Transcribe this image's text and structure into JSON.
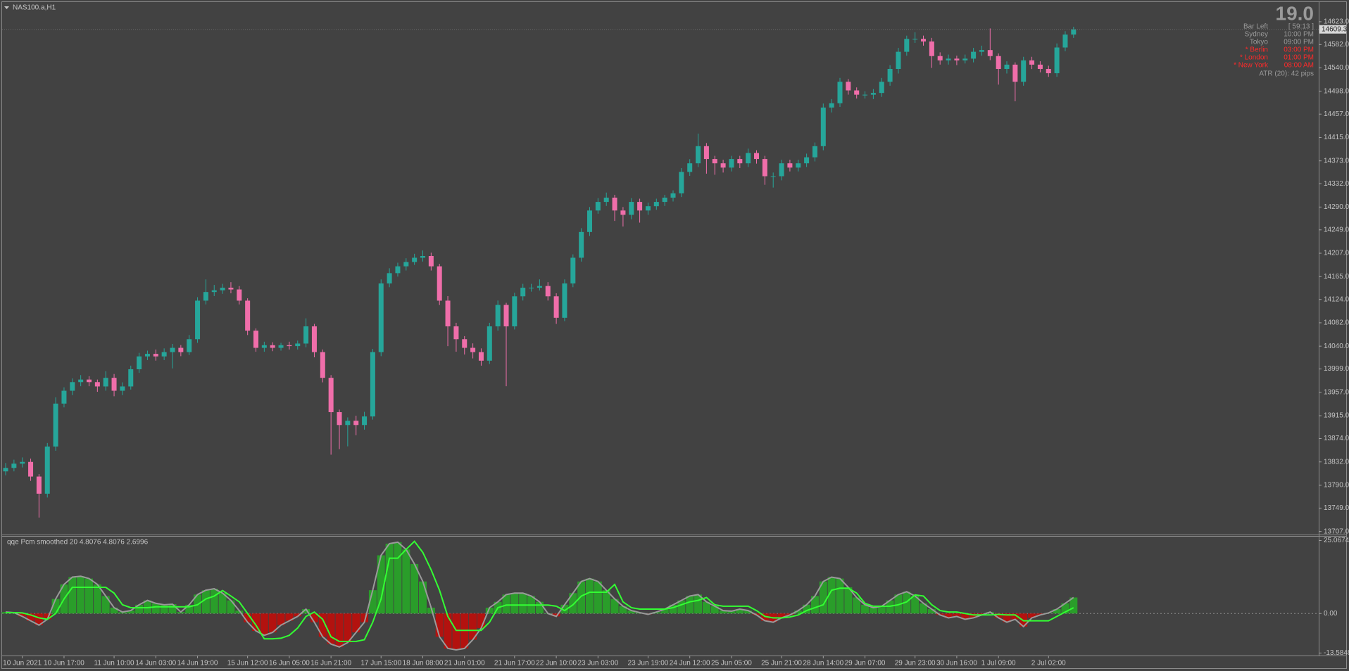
{
  "window": {
    "symbol": "NAS100.a,H1"
  },
  "info": {
    "spread": "19.0",
    "rows": [
      {
        "label": "Bar Left",
        "value": "[ 59:13 ]",
        "color": "#9a9a9a"
      },
      {
        "label": "Sydney",
        "value": "10:00 PM",
        "color": "#9a9a9a"
      },
      {
        "label": "Tokyo",
        "value": "09:00 PM",
        "color": "#9a9a9a"
      },
      {
        "label": "* Berlin",
        "value": "03:00 PM",
        "color": "#ff2a2a"
      },
      {
        "label": "* London",
        "value": "01:00 PM",
        "color": "#ff2a2a"
      },
      {
        "label": "* New York",
        "value": "08:00 AM",
        "color": "#ff2a2a"
      }
    ],
    "atr": "ATR (20): 42 pips"
  },
  "chart_data": [
    {
      "type": "candlestick",
      "up_color": "#26a69a",
      "down_color": "#f06eaa",
      "price_line": true,
      "ylim": [
        13704,
        14657
      ],
      "yticks": [
        {
          "value": 14623,
          "label": "14623.0"
        },
        {
          "value": 14582,
          "label": "14582.0"
        },
        {
          "value": 14540,
          "label": "14540.0"
        },
        {
          "value": 14498,
          "label": "14498.0"
        },
        {
          "value": 14457,
          "label": "14457.0"
        },
        {
          "value": 14415,
          "label": "14415.0"
        },
        {
          "value": 14373,
          "label": "14373.0"
        },
        {
          "value": 14332,
          "label": "14332.0"
        },
        {
          "value": 14290,
          "label": "14290.0"
        },
        {
          "value": 14249,
          "label": "14249.0"
        },
        {
          "value": 14207,
          "label": "14207.0"
        },
        {
          "value": 14165,
          "label": "14165.0"
        },
        {
          "value": 14124,
          "label": "14124.0"
        },
        {
          "value": 14082,
          "label": "14082.0"
        },
        {
          "value": 14040,
          "label": "14040.0"
        },
        {
          "value": 13999,
          "label": "13999.0"
        },
        {
          "value": 13957,
          "label": "13957.0"
        },
        {
          "value": 13915,
          "label": "13915.0"
        },
        {
          "value": 13874,
          "label": "13874.0"
        },
        {
          "value": 13832,
          "label": "13832.0"
        },
        {
          "value": 13790,
          "label": "13790.0"
        },
        {
          "value": 13749,
          "label": "13749.0"
        },
        {
          "value": 13707,
          "label": "13707.0"
        }
      ],
      "categories": [
        null,
        null,
        "10 Jun 2021",
        null,
        null,
        null,
        null,
        "10 Jun 17:00",
        null,
        null,
        null,
        null,
        null,
        "11 Jun 10:00",
        null,
        null,
        null,
        null,
        "14 Jun 03:00",
        null,
        null,
        null,
        null,
        "14 Jun 19:00",
        null,
        null,
        null,
        null,
        null,
        "15 Jun 12:00",
        null,
        null,
        null,
        null,
        "16 Jun 05:00",
        null,
        null,
        null,
        null,
        "16 Jun 21:00",
        null,
        null,
        null,
        null,
        null,
        "17 Jun 15:00",
        null,
        null,
        null,
        null,
        "18 Jun 08:00",
        null,
        null,
        null,
        null,
        "21 Jun 01:00",
        null,
        null,
        null,
        null,
        null,
        "21 Jun 17:00",
        null,
        null,
        null,
        null,
        "22 Jun 10:00",
        null,
        null,
        null,
        null,
        "23 Jun 03:00",
        null,
        null,
        null,
        null,
        null,
        "23 Jun 19:00",
        null,
        null,
        null,
        null,
        "24 Jun 12:00",
        null,
        null,
        null,
        null,
        "25 Jun 05:00",
        null,
        null,
        null,
        null,
        null,
        "25 Jun 21:00",
        null,
        null,
        null,
        null,
        "28 Jun 14:00",
        null,
        null,
        null,
        null,
        "29 Jun 07:00",
        null,
        null,
        null,
        null,
        null,
        "29 Jun 23:00",
        null,
        null,
        null,
        null,
        "30 Jun 16:00",
        null,
        null,
        null,
        null,
        "1 Jul 09:00",
        null,
        null,
        null,
        null,
        null,
        "2 Jul 02:00",
        null,
        null,
        null
      ],
      "open": [
        13815.0,
        13821.2,
        13828.9,
        13832.0,
        13805.7,
        13774.9,
        13859.7,
        13936.8,
        13959.9,
        13975.4,
        13980.0,
        13975.4,
        13967.6,
        13983.1,
        13959.9,
        13967.6,
        13998.5,
        14021.6,
        14026.2,
        14021.6,
        14029.3,
        14037.0,
        14029.3,
        14052.5,
        14121.8,
        14137.3,
        14140.4,
        14145.0,
        14141.9,
        14121.8,
        14067.9,
        14037.0,
        14041.7,
        14037.0,
        14041.7,
        14040.1,
        14044.7,
        14075.6,
        14029.3,
        13983.1,
        13921.4,
        13898.3,
        13906.0,
        13898.3,
        13913.7,
        14029.3,
        14152.7,
        14171.2,
        14183.5,
        14191.2,
        14198.9,
        14202.0,
        14183.5,
        14121.8,
        14075.6,
        14052.5,
        14037.0,
        14029.3,
        14013.9,
        14075.6,
        14114.1,
        14075.6,
        14129.6,
        14145.0,
        14145.0,
        14148.1,
        14129.6,
        14091.0,
        14152.7,
        14198.9,
        14245.2,
        14283.8,
        14299.2,
        14306.9,
        14283.8,
        14276.0,
        14299.2,
        14283.8,
        14291.5,
        14299.2,
        14306.9,
        14314.6,
        14353.1,
        14368.6,
        14399.4,
        14376.3,
        14368.6,
        14360.9,
        14376.3,
        14368.6,
        14387.1,
        14376.3,
        14345.4,
        14345.4,
        14368.6,
        14360.9,
        14368.6,
        14379.4,
        14399.4,
        14468.8,
        14476.5,
        14515.1,
        14499.6,
        14491.9,
        14491.9,
        14495.0,
        14515.1,
        14538.2,
        14569.0,
        14592.2,
        14592.2,
        14587.5,
        14561.3,
        14553.6,
        14556.7,
        14553.6,
        14556.7,
        14569.0,
        14572.1,
        14561.3,
        14538.2,
        14545.9,
        14515.1,
        14553.6,
        14545.9,
        14538.2,
        14530.5,
        14576.7,
        14599.9
      ],
      "high": [
        13830,
        13836,
        13840,
        13838,
        13810,
        13866,
        13948,
        13966,
        13982,
        13988,
        13986,
        13980,
        13995,
        13990,
        13975,
        14005,
        14028,
        14032,
        14034,
        14036,
        14044,
        14042,
        14060,
        14128,
        14160,
        14150,
        14152,
        14155,
        14148,
        14126,
        14072,
        14048,
        14047,
        14046,
        14048,
        14050,
        14090,
        14080,
        14034,
        13988,
        13926,
        13912,
        13915,
        13922,
        14035,
        14160,
        14180,
        14190,
        14198,
        14206,
        14212,
        14208,
        14188,
        14130,
        14082,
        14058,
        14045,
        14036,
        14082,
        14122,
        14118,
        14136,
        14152,
        14152,
        14160,
        14155,
        14135,
        14160,
        14205,
        14252,
        14290,
        14306,
        14316,
        14312,
        14290,
        14306,
        14305,
        14298,
        14305,
        14312,
        14320,
        14360,
        14376,
        14422,
        14405,
        14382,
        14375,
        14382,
        14382,
        14395,
        14392,
        14382,
        14352,
        14375,
        14375,
        14375,
        14386,
        14406,
        14476,
        14484,
        14522,
        14520,
        14505,
        14498,
        14502,
        14522,
        14545,
        14576,
        14598,
        14604,
        14598,
        14594,
        14568,
        14564,
        14562,
        14564,
        14576,
        14580,
        14611,
        14566,
        14552,
        14550,
        14560,
        14560,
        14552,
        14544,
        14584,
        14606,
        14614
      ],
      "low": [
        13808,
        13815,
        13822,
        13798,
        13732,
        13768,
        13852,
        13930,
        13952,
        13968,
        13968,
        13958,
        13960,
        13950,
        13952,
        13962,
        13992,
        14015,
        14014,
        14015,
        14000,
        14022,
        14024,
        14046,
        14115,
        14130,
        14134,
        14135,
        14115,
        14060,
        14030,
        14030,
        14031,
        14032,
        14034,
        14034,
        14038,
        14020,
        13975,
        13845,
        13855,
        13860,
        13880,
        13890,
        13908,
        14022,
        14146,
        14165,
        14176,
        14186,
        14192,
        14176,
        14114,
        14040,
        14030,
        14025,
        14018,
        14005,
        14008,
        14068,
        13968,
        14070,
        14122,
        14138,
        14140,
        14122,
        14080,
        14085,
        14146,
        14192,
        14238,
        14278,
        14292,
        14265,
        14255,
        14268,
        14262,
        14276,
        14285,
        14292,
        14300,
        14308,
        14346,
        14362,
        14350,
        14348,
        14352,
        14354,
        14360,
        14362,
        14368,
        14330,
        14325,
        14338,
        14354,
        14354,
        14362,
        14372,
        14392,
        14460,
        14470,
        14492,
        14485,
        14485,
        14484,
        14488,
        14508,
        14530,
        14562,
        14585,
        14580,
        14540,
        14546,
        14546,
        14545,
        14548,
        14550,
        14562,
        14554,
        14510,
        14530,
        14480,
        14508,
        14538,
        14532,
        14524,
        14524,
        14570,
        14594
      ],
      "close": [
        13821.2,
        13828.9,
        13832.0,
        13805.7,
        13774.9,
        13859.7,
        13936.8,
        13959.9,
        13975.4,
        13980.0,
        13975.4,
        13967.6,
        13983.1,
        13959.9,
        13967.6,
        13998.5,
        14021.6,
        14026.2,
        14021.6,
        14029.3,
        14037.0,
        14029.3,
        14052.5,
        14121.8,
        14137.3,
        14140.4,
        14145.0,
        14141.9,
        14121.8,
        14067.9,
        14037.0,
        14041.7,
        14037.0,
        14041.7,
        14040.1,
        14044.7,
        14075.6,
        14029.3,
        13983.1,
        13921.4,
        13898.3,
        13906.0,
        13898.3,
        13913.7,
        14029.3,
        14152.7,
        14171.2,
        14183.5,
        14191.2,
        14198.9,
        14202.0,
        14183.5,
        14121.8,
        14075.6,
        14052.5,
        14037.0,
        14029.3,
        14013.9,
        14075.6,
        14114.1,
        14075.6,
        14129.6,
        14145.0,
        14145.0,
        14148.1,
        14129.6,
        14091.0,
        14152.7,
        14198.9,
        14245.2,
        14283.8,
        14299.2,
        14306.9,
        14283.8,
        14276.0,
        14299.2,
        14283.8,
        14291.5,
        14299.2,
        14306.9,
        14314.6,
        14353.1,
        14368.6,
        14399.4,
        14376.3,
        14368.6,
        14360.9,
        14376.3,
        14368.6,
        14387.1,
        14376.3,
        14345.4,
        14345.4,
        14368.6,
        14360.9,
        14368.6,
        14379.4,
        14399.4,
        14468.8,
        14476.5,
        14515.1,
        14499.6,
        14491.9,
        14491.9,
        14495.0,
        14515.1,
        14538.2,
        14569.0,
        14592.2,
        14592.2,
        14587.5,
        14561.3,
        14553.6,
        14556.7,
        14553.6,
        14556.7,
        14569.0,
        14572.1,
        14561.3,
        14538.2,
        14545.9,
        14515.1,
        14553.6,
        14545.9,
        14538.2,
        14530.5,
        14576.7,
        14599.9,
        14609.3
      ]
    },
    {
      "type": "histogram",
      "title": "qqe Pcm smoothed 20 4.8076 4.8076 2.6996",
      "ylim": [
        -14.2,
        26.4
      ],
      "yticks": [
        25.0674,
        {
          "value": 0,
          "label": "0.00"
        },
        -13.5848
      ],
      "series": [
        {
          "color_positive": "#2a9d2a",
          "color_negative": "#b3120f",
          "outline_color": "#9a9a9a",
          "values": [
            0.5,
            0.3,
            -1,
            -2.5,
            -4,
            -2,
            5,
            10,
            12.5,
            12.8,
            12,
            10,
            6,
            2,
            0.5,
            1,
            3,
            4.5,
            3.5,
            3,
            3.2,
            0.5,
            3,
            6.5,
            8,
            8.5,
            7,
            4.5,
            1,
            -3,
            -6,
            -7.5,
            -6.5,
            -4,
            -2.5,
            -1,
            1.5,
            -3,
            -8,
            -10.5,
            -11.5,
            -10,
            -6.5,
            -3,
            8,
            20,
            24,
            24.5,
            22,
            17,
            11,
            2,
            -8,
            -12,
            -12.5,
            -12,
            -9,
            -5,
            2,
            4,
            6.5,
            7,
            7,
            6,
            4,
            0,
            -1,
            3,
            7,
            11,
            12,
            11,
            8,
            5,
            2.5,
            1,
            0.3,
            -0.3,
            0.5,
            1.5,
            3,
            4.5,
            6,
            6.5,
            4,
            2.5,
            1,
            0.8,
            1.5,
            1,
            -0.5,
            -2.5,
            -3,
            -1.5,
            -0.5,
            1,
            3,
            6,
            11,
            12.5,
            12,
            9,
            5.5,
            3,
            2,
            2.5,
            4.5,
            6.5,
            7.5,
            6,
            3.5,
            1.5,
            -0.5,
            -1.5,
            -1,
            -2,
            -1.5,
            -0.5,
            0.5,
            -1.5,
            -3,
            -2,
            -4.5,
            -1.5,
            -0.5,
            0.2,
            1.5,
            3.5,
            5.5
          ]
        },
        {
          "color": "#33ff33",
          "values": [
            0.3,
            0.3,
            0.2,
            -0.5,
            -1.5,
            -2,
            0,
            5,
            9,
            9,
            9,
            9,
            9,
            7,
            3,
            2,
            2,
            2,
            2.3,
            2.3,
            2.3,
            2.3,
            2.3,
            3,
            5,
            6,
            7.9,
            6,
            4,
            0,
            -4,
            -8.7,
            -8.7,
            -8.5,
            -7.5,
            -5,
            -1,
            0.5,
            -2,
            -8,
            -9.6,
            -9.6,
            -9.6,
            -9,
            -3,
            5,
            19,
            19,
            22,
            24.8,
            21,
            15,
            8,
            -1,
            -5.8,
            -5.8,
            -5.8,
            -5.8,
            -3,
            2,
            2.9,
            2.9,
            2.9,
            2.9,
            2.9,
            2.9,
            2.5,
            1,
            3,
            6,
            7.3,
            7.3,
            7.3,
            10,
            4,
            2,
            1.5,
            1.5,
            1.5,
            1.5,
            2,
            3,
            4,
            4.5,
            5.5,
            3,
            2.5,
            2.5,
            2.5,
            2.5,
            1,
            -1,
            -1.5,
            -1.5,
            -1.2,
            -0.5,
            1,
            2,
            3,
            8,
            8.7,
            8.7,
            7,
            3.5,
            2.5,
            2.5,
            2.5,
            3,
            4,
            6.4,
            6,
            3,
            1,
            0.5,
            0.5,
            0,
            -0.5,
            -0.5,
            -0.5,
            -0.3,
            -0.5,
            -0.5,
            -2.5,
            -2.5,
            -2.5,
            -2.5,
            -1,
            0.5,
            2
          ]
        }
      ]
    }
  ]
}
